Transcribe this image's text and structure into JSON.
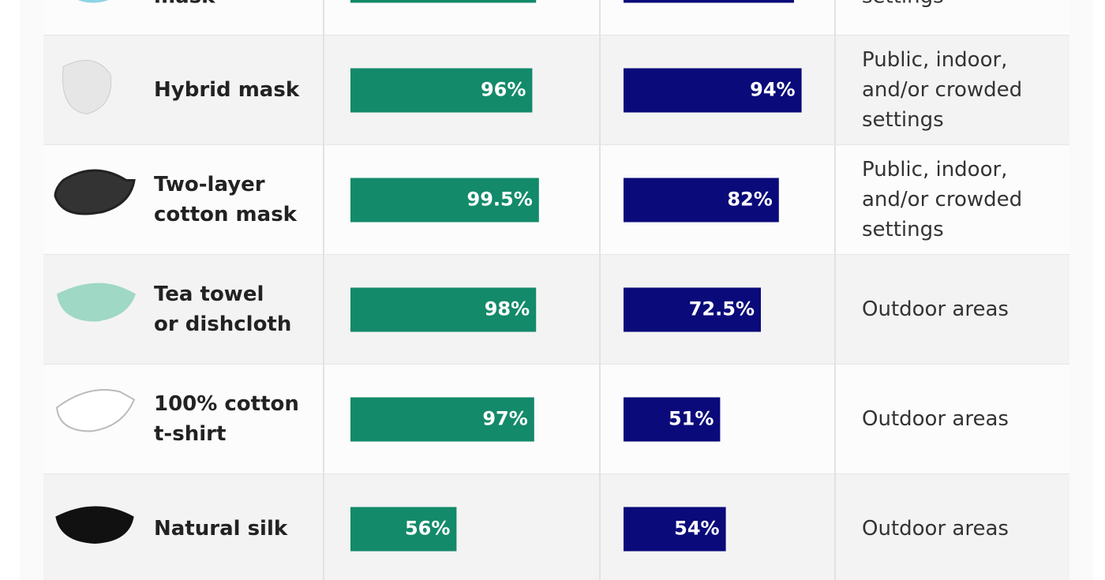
{
  "rows": [
    {
      "name": [
        "mask"
      ],
      "filtration": 98,
      "second": 90,
      "setting": [
        "settings"
      ]
    },
    {
      "name": [
        "Hybrid mask"
      ],
      "filtration": 96,
      "filtration_label": "96%",
      "second": 94,
      "second_label": "94%",
      "setting": [
        "Public, indoor,",
        "and/or crowded",
        "settings"
      ]
    },
    {
      "name": [
        "Two-layer",
        "cotton mask"
      ],
      "filtration": 99.5,
      "filtration_label": "99.5%",
      "second": 82,
      "second_label": "82%",
      "setting": [
        "Public, indoor,",
        "and/or crowded",
        "settings"
      ]
    },
    {
      "name": [
        "Tea towel",
        "or dishcloth"
      ],
      "filtration": 98,
      "filtration_label": "98%",
      "second": 72.5,
      "second_label": "72.5%",
      "setting": [
        "Outdoor areas"
      ]
    },
    {
      "name": [
        "100% cotton",
        "t-shirt"
      ],
      "filtration": 97,
      "filtration_label": "97%",
      "second": 51,
      "second_label": "51%",
      "setting": [
        "Outdoor areas"
      ]
    },
    {
      "name": [
        "Natural silk"
      ],
      "filtration": 56,
      "filtration_label": "56%",
      "second": 54,
      "second_label": "54%",
      "setting": [
        "Outdoor areas"
      ]
    }
  ]
}
